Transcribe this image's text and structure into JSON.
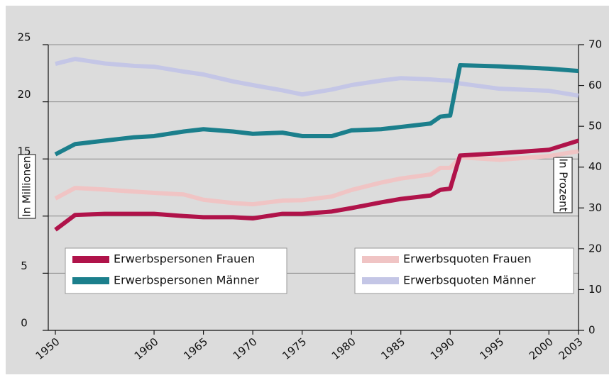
{
  "chart_data": {
    "type": "line",
    "y_label": "In Millionen",
    "y2_label": "In Prozent",
    "x": [
      1950,
      1952,
      1955,
      1958,
      1960,
      1963,
      1965,
      1968,
      1970,
      1973,
      1975,
      1978,
      1980,
      1983,
      1985,
      1988,
      1989,
      1990,
      1991,
      1995,
      2000,
      2003
    ],
    "series": [
      {
        "name": "Erwerbspersonen Frauen",
        "color": "#b0134a",
        "axis": "y",
        "values": [
          8.8,
          10.1,
          10.2,
          10.2,
          10.2,
          10.0,
          9.9,
          9.9,
          9.8,
          10.2,
          10.2,
          10.4,
          10.7,
          11.2,
          11.5,
          11.8,
          12.3,
          12.4,
          15.3,
          15.5,
          15.8,
          16.6
        ]
      },
      {
        "name": "Erwerbspersonen Männer",
        "color": "#1b7f8c",
        "axis": "y",
        "values": [
          15.4,
          16.3,
          16.6,
          16.9,
          17.0,
          17.4,
          17.6,
          17.4,
          17.2,
          17.3,
          17.0,
          17.0,
          17.5,
          17.6,
          17.8,
          18.1,
          18.7,
          18.8,
          23.2,
          23.1,
          22.9,
          22.7
        ]
      },
      {
        "name": "Erwerbsquoten Frauen",
        "color": "#f0c4c4",
        "axis": "y2",
        "values": [
          32.3,
          34.9,
          34.5,
          34.0,
          33.7,
          33.3,
          32.0,
          31.2,
          30.9,
          31.8,
          31.9,
          32.8,
          34.4,
          36.2,
          37.2,
          38.2,
          39.8,
          39.8,
          42.4,
          41.8,
          42.7,
          43.9
        ]
      },
      {
        "name": "Erwerbsquoten Männer",
        "color": "#c4c6e6",
        "axis": "y2",
        "values": [
          65.3,
          66.5,
          65.4,
          64.8,
          64.6,
          63.4,
          62.7,
          61.0,
          60.1,
          58.8,
          57.8,
          59.0,
          60.1,
          61.2,
          61.8,
          61.5,
          61.3,
          61.2,
          60.5,
          59.2,
          58.7,
          57.5
        ]
      }
    ],
    "xlim": [
      1950,
      2003
    ],
    "xticks": [
      1950,
      1960,
      1965,
      1970,
      1975,
      1980,
      1985,
      1990,
      1995,
      2000,
      2003
    ],
    "ylim": [
      0,
      25
    ],
    "yticks": [
      0,
      5,
      10,
      15,
      20,
      25
    ],
    "y2lim": [
      0,
      70
    ],
    "y2ticks": [
      0,
      10,
      20,
      30,
      40,
      50,
      60,
      70
    ],
    "grid": true
  }
}
